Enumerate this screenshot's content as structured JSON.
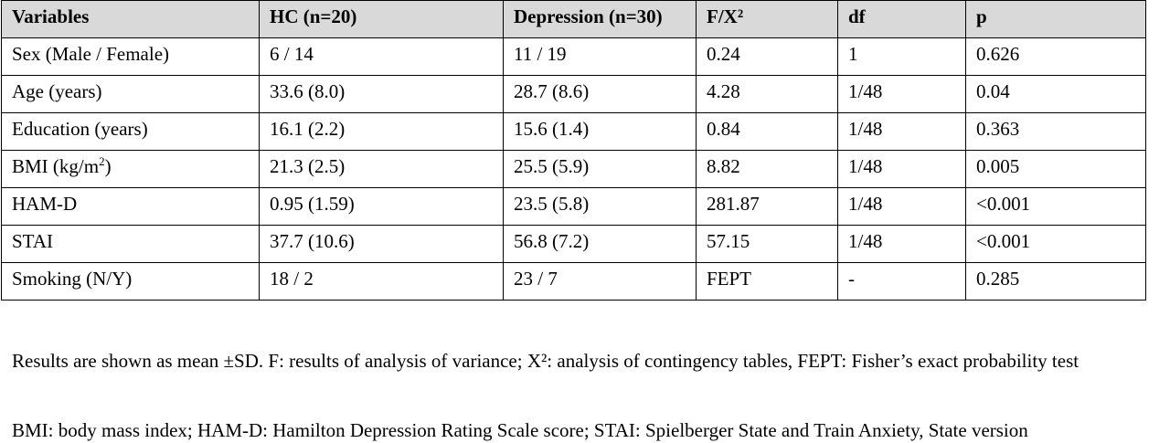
{
  "table": {
    "headers": [
      "Variables",
      "HC (n=20)",
      "Depression (n=30)",
      "F/X²",
      "df",
      "p"
    ],
    "rows": [
      {
        "variable": "Sex (Male / Female)",
        "variable_sup": "",
        "variable_tail": "",
        "hc": "6 / 14",
        "depression": "11 / 19",
        "f": "0.24",
        "df": "1",
        "p": "0.626"
      },
      {
        "variable": "Age (years)",
        "variable_sup": "",
        "variable_tail": "",
        "hc": "33.6 (8.0)",
        "depression": "28.7 (8.6)",
        "f": "4.28",
        "df": "1/48",
        "p": "0.04"
      },
      {
        "variable": "Education (years)",
        "variable_sup": "",
        "variable_tail": "",
        "hc": "16.1 (2.2)",
        "depression": "15.6 (1.4)",
        "f": "0.84",
        "df": "1/48",
        "p": "0.363"
      },
      {
        "variable": "BMI (kg/m",
        "variable_sup": "2",
        "variable_tail": ")",
        "hc": "21.3 (2.5)",
        "depression": "25.5 (5.9)",
        "f": "8.82",
        "df": "1/48",
        "p": "0.005"
      },
      {
        "variable": "HAM-D",
        "variable_sup": "",
        "variable_tail": "",
        "hc": "0.95 (1.59)",
        "depression": "23.5 (5.8)",
        "f": "281.87",
        "df": "1/48",
        "p": "<0.001"
      },
      {
        "variable": "STAI",
        "variable_sup": "",
        "variable_tail": "",
        "hc": "37.7 (10.6)",
        "depression": "56.8 (7.2)",
        "f": "57.15",
        "df": "1/48",
        "p": "<0.001"
      },
      {
        "variable": "Smoking (N/Y)",
        "variable_sup": "",
        "variable_tail": "",
        "hc": "18 / 2",
        "depression": "23 / 7",
        "f": "FEPT",
        "df": "-",
        "p": "0.285"
      }
    ]
  },
  "notes": {
    "note1": "Results are shown as mean ±SD. F: results of analysis of variance; X²: analysis of contingency tables, FEPT: Fisher’s exact probability test",
    "note2": "BMI: body mass index; HAM-D: Hamilton Depression Rating Scale score; STAI: Spielberger State and Train Anxiety, State version"
  },
  "colors": {
    "header_background": "#d9d9d9",
    "border": "#000000",
    "text": "#000000"
  }
}
